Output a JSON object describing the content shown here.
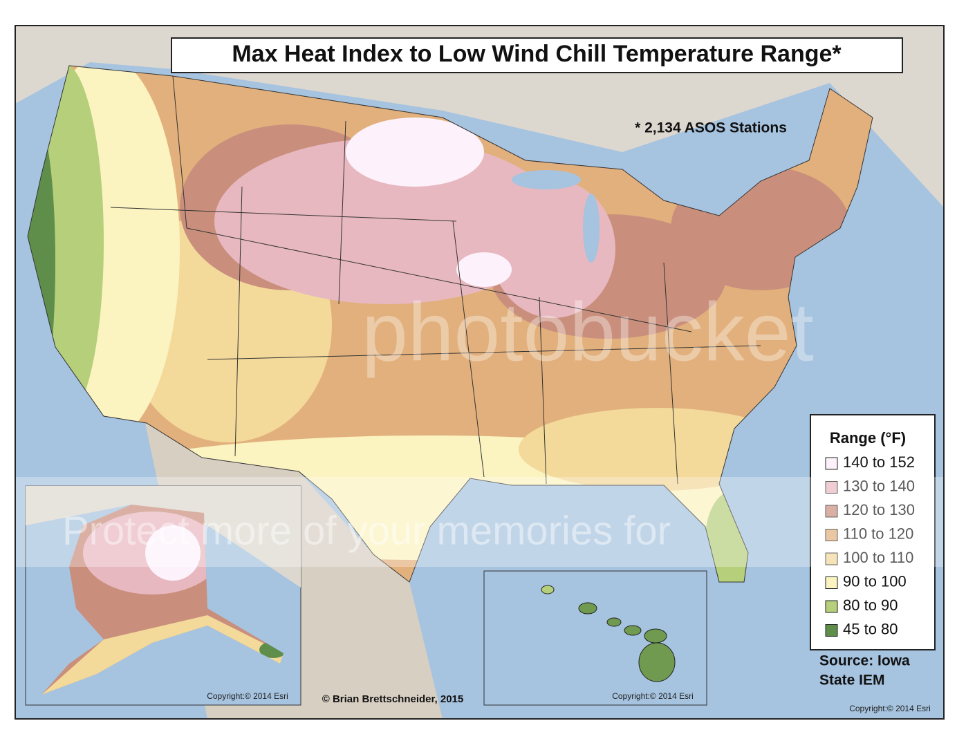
{
  "title": "Max Heat Index to Low Wind Chill Temperature Range*",
  "note": "* 2,134 ASOS Stations",
  "legend": {
    "title": "Range (°F)",
    "items": [
      {
        "label": "140 to 152",
        "color": "#fdf2fb"
      },
      {
        "label": "130 to 140",
        "color": "#e8b8c0"
      },
      {
        "label": "120 to 130",
        "color": "#c98f7c"
      },
      {
        "label": "110 to 120",
        "color": "#e2b07c"
      },
      {
        "label": "100 to 110",
        "color": "#f3d99a"
      },
      {
        "label": "90 to 100",
        "color": "#fbf3c0"
      },
      {
        "label": "80 to 90",
        "color": "#b5cf7a"
      },
      {
        "label": "45 to 80",
        "color": "#5f8e4a"
      }
    ]
  },
  "source": [
    "Source: Iowa",
    "State IEM"
  ],
  "author": "© Brian Brettschneider, 2015",
  "copyrights": [
    "Copyright:© 2014 Esri",
    "Copyright:© 2014 Esri",
    "Copyright:© 2014 Esri"
  ],
  "watermark": [
    "photobucket",
    "Protect more of your memories for"
  ]
}
